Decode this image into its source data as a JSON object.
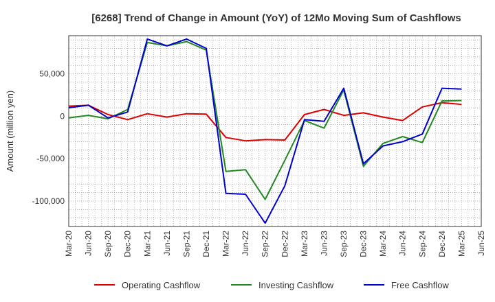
{
  "chart_data": {
    "type": "line",
    "title": "[6268]  Trend of Change in Amount (YoY) of 12Mo Moving Sum of Cashflows",
    "xlabel": "",
    "ylabel": "Amount (million yen)",
    "ylim": [
      -130000,
      95000
    ],
    "yticks": [
      50000,
      0,
      -50000,
      -100000
    ],
    "ytick_labels": [
      "50,000",
      "0",
      "-50,000",
      "-100,000"
    ],
    "grid": true,
    "legend_position": "bottom",
    "categories": [
      "Mar-20",
      "Jun-20",
      "Sep-20",
      "Dec-20",
      "Mar-21",
      "Jun-21",
      "Sep-21",
      "Dec-21",
      "Mar-22",
      "Jun-22",
      "Sep-22",
      "Dec-22",
      "Mar-23",
      "Jun-23",
      "Sep-23",
      "Dec-23",
      "Mar-24",
      "Jun-24",
      "Sep-24",
      "Dec-24",
      "Mar-25",
      "Jun-25"
    ],
    "series": [
      {
        "name": "Operating Cashflow",
        "color": "#dd0000",
        "values": [
          12000,
          13000,
          2000,
          -4000,
          3000,
          -1000,
          3000,
          2500,
          -25000,
          -29000,
          -27500,
          -28000,
          2000,
          8000,
          1000,
          4000,
          -1000,
          -5000,
          11000,
          16000,
          14000,
          null
        ]
      },
      {
        "name": "Investing Cashflow",
        "color": "#228822",
        "values": [
          -2000,
          1000,
          -3000,
          8000,
          87000,
          83000,
          88000,
          78000,
          -65000,
          -63000,
          -98000,
          -52000,
          -5000,
          -14000,
          31000,
          -59000,
          -32000,
          -24000,
          -31000,
          18000,
          18500,
          null
        ]
      },
      {
        "name": "Free Cashflow",
        "color": "#0000cc",
        "values": [
          10000,
          13000,
          -2000,
          5000,
          91000,
          83000,
          91000,
          80000,
          -91000,
          -92000,
          -126000,
          -82000,
          -4000,
          -6000,
          33000,
          -56000,
          -35000,
          -30000,
          -21000,
          33000,
          32000,
          null
        ]
      }
    ]
  }
}
